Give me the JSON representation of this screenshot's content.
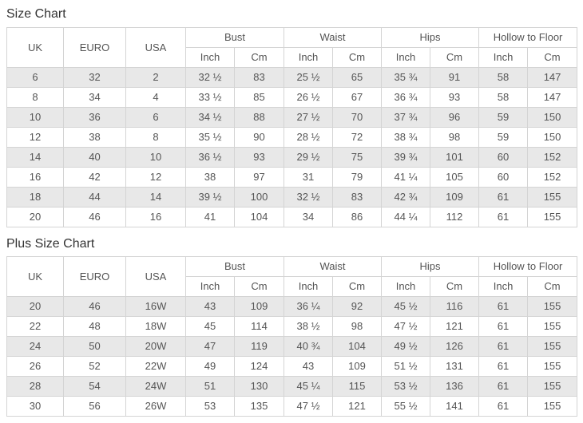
{
  "colors": {
    "stripe": "#e8e8e8",
    "border": "#d4d4d4",
    "text": "#555555",
    "title": "#333333"
  },
  "size_chart": {
    "title": "Size Chart",
    "headers": {
      "uk": "UK",
      "euro": "EURO",
      "usa": "USA",
      "groups": [
        "Bust",
        "Waist",
        "Hips",
        "Hollow to Floor"
      ],
      "units": [
        "Inch",
        "Cm"
      ]
    },
    "rows": [
      [
        "6",
        "32",
        "2",
        "32 ½",
        "83",
        "25 ½",
        "65",
        "35 ¾",
        "91",
        "58",
        "147"
      ],
      [
        "8",
        "34",
        "4",
        "33 ½",
        "85",
        "26 ½",
        "67",
        "36 ¾",
        "93",
        "58",
        "147"
      ],
      [
        "10",
        "36",
        "6",
        "34 ½",
        "88",
        "27 ½",
        "70",
        "37 ¾",
        "96",
        "59",
        "150"
      ],
      [
        "12",
        "38",
        "8",
        "35 ½",
        "90",
        "28 ½",
        "72",
        "38 ¾",
        "98",
        "59",
        "150"
      ],
      [
        "14",
        "40",
        "10",
        "36 ½",
        "93",
        "29 ½",
        "75",
        "39 ¾",
        "101",
        "60",
        "152"
      ],
      [
        "16",
        "42",
        "12",
        "38",
        "97",
        "31",
        "79",
        "41 ¼",
        "105",
        "60",
        "152"
      ],
      [
        "18",
        "44",
        "14",
        "39 ½",
        "100",
        "32 ½",
        "83",
        "42 ¾",
        "109",
        "61",
        "155"
      ],
      [
        "20",
        "46",
        "16",
        "41",
        "104",
        "34",
        "86",
        "44 ¼",
        "112",
        "61",
        "155"
      ]
    ]
  },
  "plus_size_chart": {
    "title": "Plus Size Chart",
    "headers": {
      "uk": "UK",
      "euro": "EURO",
      "usa": "USA",
      "groups": [
        "Bust",
        "Waist",
        "Hips",
        "Hollow to Floor"
      ],
      "units": [
        "Inch",
        "Cm"
      ]
    },
    "rows": [
      [
        "20",
        "46",
        "16W",
        "43",
        "109",
        "36 ¼",
        "92",
        "45 ½",
        "116",
        "61",
        "155"
      ],
      [
        "22",
        "48",
        "18W",
        "45",
        "114",
        "38 ½",
        "98",
        "47 ½",
        "121",
        "61",
        "155"
      ],
      [
        "24",
        "50",
        "20W",
        "47",
        "119",
        "40 ¾",
        "104",
        "49 ½",
        "126",
        "61",
        "155"
      ],
      [
        "26",
        "52",
        "22W",
        "49",
        "124",
        "43",
        "109",
        "51 ½",
        "131",
        "61",
        "155"
      ],
      [
        "28",
        "54",
        "24W",
        "51",
        "130",
        "45 ¼",
        "115",
        "53 ½",
        "136",
        "61",
        "155"
      ],
      [
        "30",
        "56",
        "26W",
        "53",
        "135",
        "47 ½",
        "121",
        "55 ½",
        "141",
        "61",
        "155"
      ]
    ]
  }
}
